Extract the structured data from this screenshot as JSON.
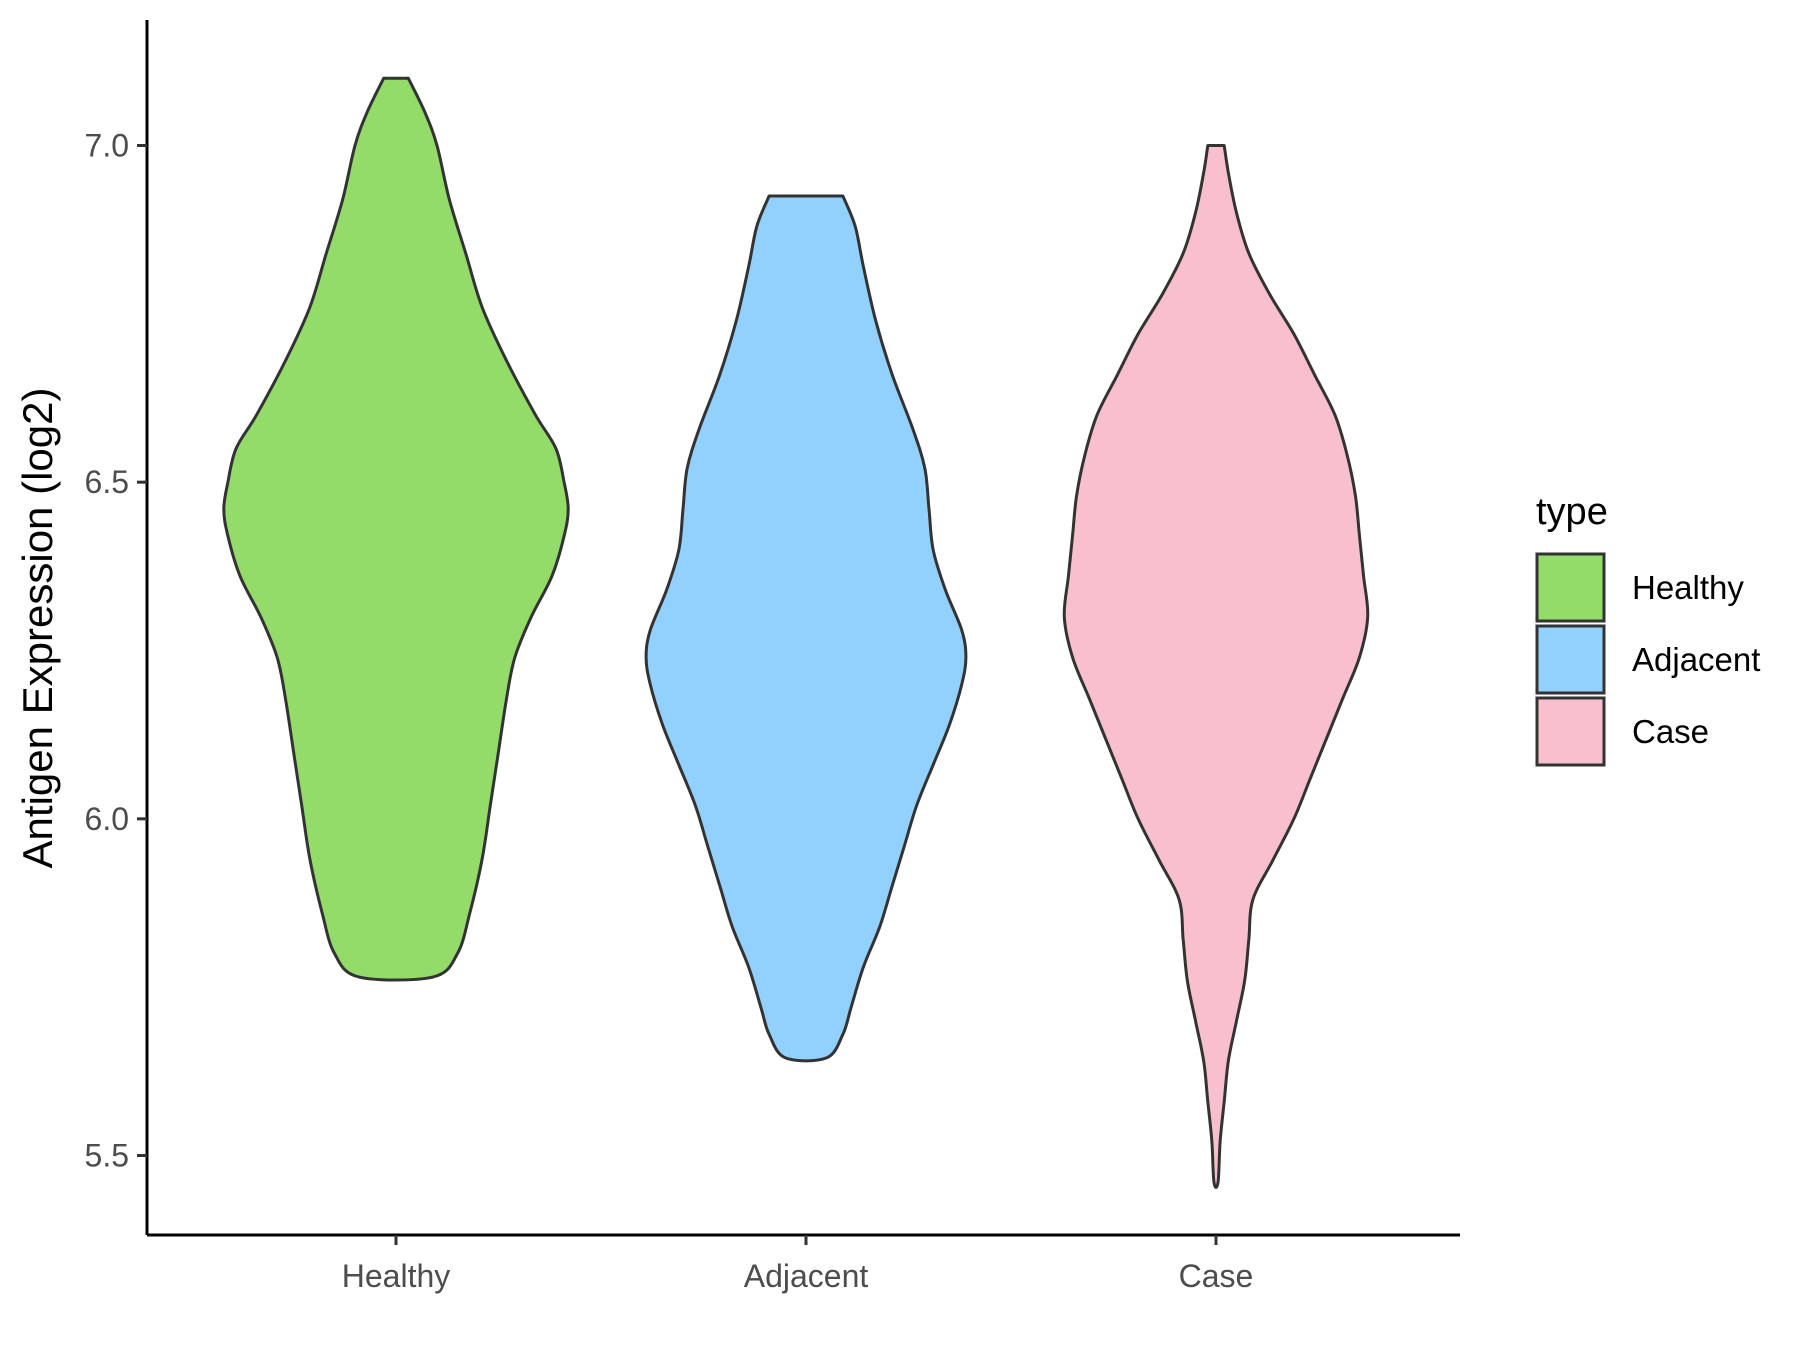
{
  "chart_data": {
    "type": "violin",
    "ylabel": "Antigen Expression (log2)",
    "xlabel": "",
    "ylim": [
      5.38,
      7.18
    ],
    "yticks": [
      5.5,
      6.0,
      6.5,
      7.0
    ],
    "ytick_labels": [
      "5.5",
      "6.0",
      "6.5",
      "7.0"
    ],
    "categories": [
      "Healthy",
      "Adjacent",
      "Case"
    ],
    "grid": false,
    "legend": {
      "title": "type",
      "position": "right",
      "entries": [
        "Healthy",
        "Adjacent",
        "Case"
      ]
    },
    "series": [
      {
        "name": "Healthy",
        "color": "#93dc6a",
        "min": 5.765,
        "max": 7.1,
        "density_profile": [
          [
            7.1,
            0.03
          ],
          [
            7.05,
            0.07
          ],
          [
            7.0,
            0.1
          ],
          [
            6.92,
            0.13
          ],
          [
            6.84,
            0.17
          ],
          [
            6.76,
            0.21
          ],
          [
            6.68,
            0.27
          ],
          [
            6.6,
            0.34
          ],
          [
            6.55,
            0.39
          ],
          [
            6.5,
            0.41
          ],
          [
            6.46,
            0.42
          ],
          [
            6.42,
            0.41
          ],
          [
            6.36,
            0.38
          ],
          [
            6.3,
            0.33
          ],
          [
            6.24,
            0.29
          ],
          [
            6.18,
            0.27
          ],
          [
            6.1,
            0.25
          ],
          [
            6.02,
            0.23
          ],
          [
            5.94,
            0.21
          ],
          [
            5.86,
            0.18
          ],
          [
            5.8,
            0.15
          ],
          [
            5.765,
            0.09
          ]
        ]
      },
      {
        "name": "Adjacent",
        "color": "#92d1fd",
        "min": 5.645,
        "max": 6.925,
        "density_profile": [
          [
            6.925,
            0.09
          ],
          [
            6.88,
            0.12
          ],
          [
            6.82,
            0.14
          ],
          [
            6.74,
            0.17
          ],
          [
            6.66,
            0.21
          ],
          [
            6.58,
            0.26
          ],
          [
            6.52,
            0.29
          ],
          [
            6.46,
            0.3
          ],
          [
            6.4,
            0.31
          ],
          [
            6.34,
            0.34
          ],
          [
            6.28,
            0.38
          ],
          [
            6.24,
            0.39
          ],
          [
            6.2,
            0.38
          ],
          [
            6.14,
            0.35
          ],
          [
            6.08,
            0.31
          ],
          [
            6.02,
            0.27
          ],
          [
            5.96,
            0.24
          ],
          [
            5.9,
            0.21
          ],
          [
            5.84,
            0.18
          ],
          [
            5.78,
            0.14
          ],
          [
            5.72,
            0.11
          ],
          [
            5.68,
            0.09
          ],
          [
            5.645,
            0.05
          ]
        ]
      },
      {
        "name": "Case",
        "color": "#f7c0cc",
        "min": 5.46,
        "max": 7.0,
        "density_profile": [
          [
            7.0,
            0.02
          ],
          [
            6.96,
            0.03
          ],
          [
            6.9,
            0.05
          ],
          [
            6.84,
            0.08
          ],
          [
            6.78,
            0.13
          ],
          [
            6.72,
            0.19
          ],
          [
            6.66,
            0.24
          ],
          [
            6.6,
            0.29
          ],
          [
            6.54,
            0.32
          ],
          [
            6.48,
            0.34
          ],
          [
            6.42,
            0.35
          ],
          [
            6.36,
            0.36
          ],
          [
            6.3,
            0.37
          ],
          [
            6.24,
            0.35
          ],
          [
            6.18,
            0.31
          ],
          [
            6.12,
            0.27
          ],
          [
            6.06,
            0.23
          ],
          [
            6.0,
            0.19
          ],
          [
            5.94,
            0.14
          ],
          [
            5.88,
            0.09
          ],
          [
            5.82,
            0.08
          ],
          [
            5.76,
            0.07
          ],
          [
            5.7,
            0.05
          ],
          [
            5.64,
            0.03
          ],
          [
            5.58,
            0.02
          ],
          [
            5.52,
            0.01
          ],
          [
            5.46,
            0.005
          ]
        ]
      }
    ]
  }
}
